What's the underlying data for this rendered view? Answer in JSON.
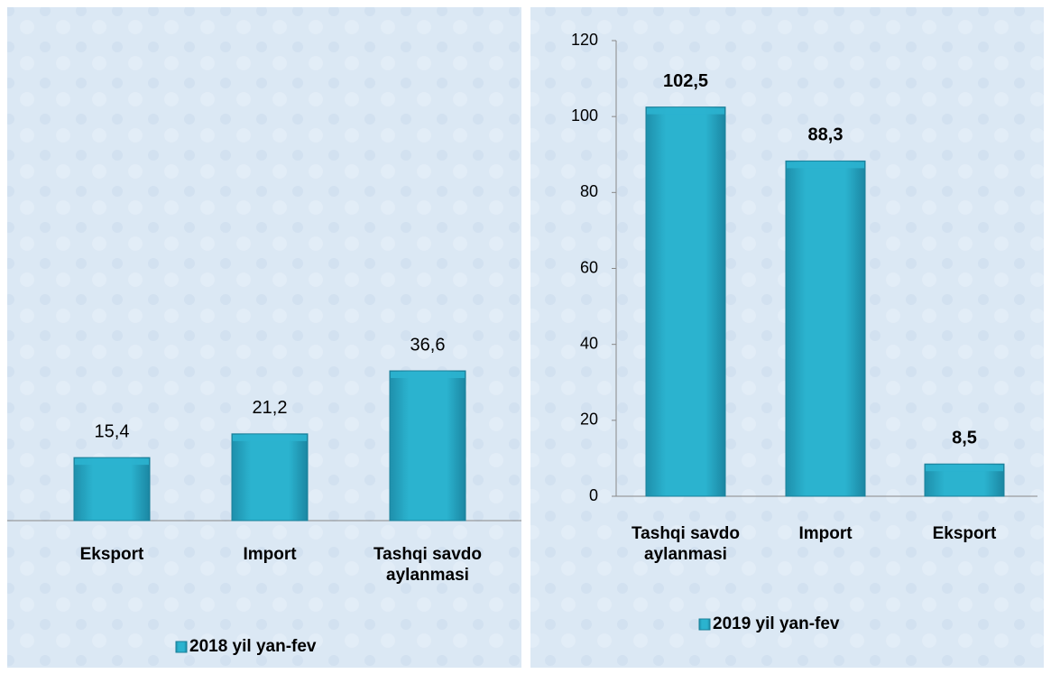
{
  "chart_data": [
    {
      "type": "bar",
      "categories": [
        "Eksport",
        "Import",
        "Tashqi savdo aylanmasi"
      ],
      "series": [
        {
          "name": "2018 yil yan-fev",
          "color": "#2bb3cf",
          "values": [
            15.4,
            21.2,
            36.6
          ],
          "value_labels": [
            "15,4",
            "21,2",
            "36,6"
          ]
        }
      ],
      "legend": "bottom"
    },
    {
      "type": "bar",
      "categories": [
        "Tashqi savdo aylanmasi",
        "Import",
        "Eksport"
      ],
      "series": [
        {
          "name": "2019 yil yan-fev",
          "color": "#2bb3cf",
          "values": [
            102.5,
            88.3,
            8.5
          ],
          "value_labels": [
            "102,5",
            "88,3",
            "8,5"
          ]
        }
      ],
      "ylim": [
        0,
        120
      ],
      "yticks": [
        0,
        20,
        40,
        60,
        80,
        100,
        120
      ],
      "legend": "bottom"
    }
  ]
}
